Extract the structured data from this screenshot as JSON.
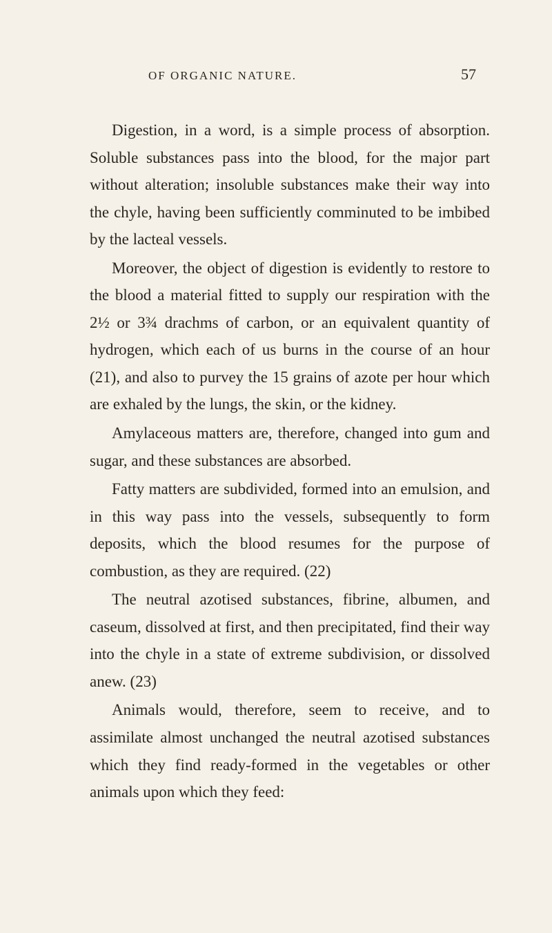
{
  "header": {
    "title": "OF ORGANIC NATURE.",
    "page_number": "57"
  },
  "paragraphs": {
    "p1": "Digestion, in a word, is a simple process of ab­sorption. Soluble substances pass into the blood, for the major part without alteration; insoluble substances make their way into the chyle, having been sufficiently comminuted to be imbibed by the lacteal vessels.",
    "p2": "Moreover, the object of digestion is evidently to restore to the blood a material fitted to supply our respiration with the 2½ or 3¾ drachms of carbon, or an equivalent quantity of hydrogen, which each of us burns in the course of an hour (21), and also to purvey the 15 grains of azote per hour which are exhaled by the lungs, the skin, or the kidney.",
    "p3": "Amylaceous matters are, therefore, changed into gum and sugar, and these substances are absorbed.",
    "p4": "Fatty matters are subdivided, formed into an emulsion, and in this way pass into the vessels, sub­sequently to form deposits, which the blood resumes for the purpose of combustion, as they are required. (22)",
    "p5": "The neutral azotised substances, fibrine, albu­men, and caseum, dissolved at first, and then pre­cipitated, find their way into the chyle in a state of extreme subdivision, or dissolved anew. (23)",
    "p6": "Animals would, therefore, seem to receive, and to assimilate almost unchanged the neutral azotised substances which they find ready-formed in the ve­getables or other animals upon which they feed:"
  },
  "styling": {
    "background_color": "#f5f1e8",
    "text_color": "#2a2520",
    "body_font_size": 23,
    "header_font_size": 17,
    "page_number_font_size": 22,
    "line_height": 1.72,
    "text_indent": 32
  }
}
